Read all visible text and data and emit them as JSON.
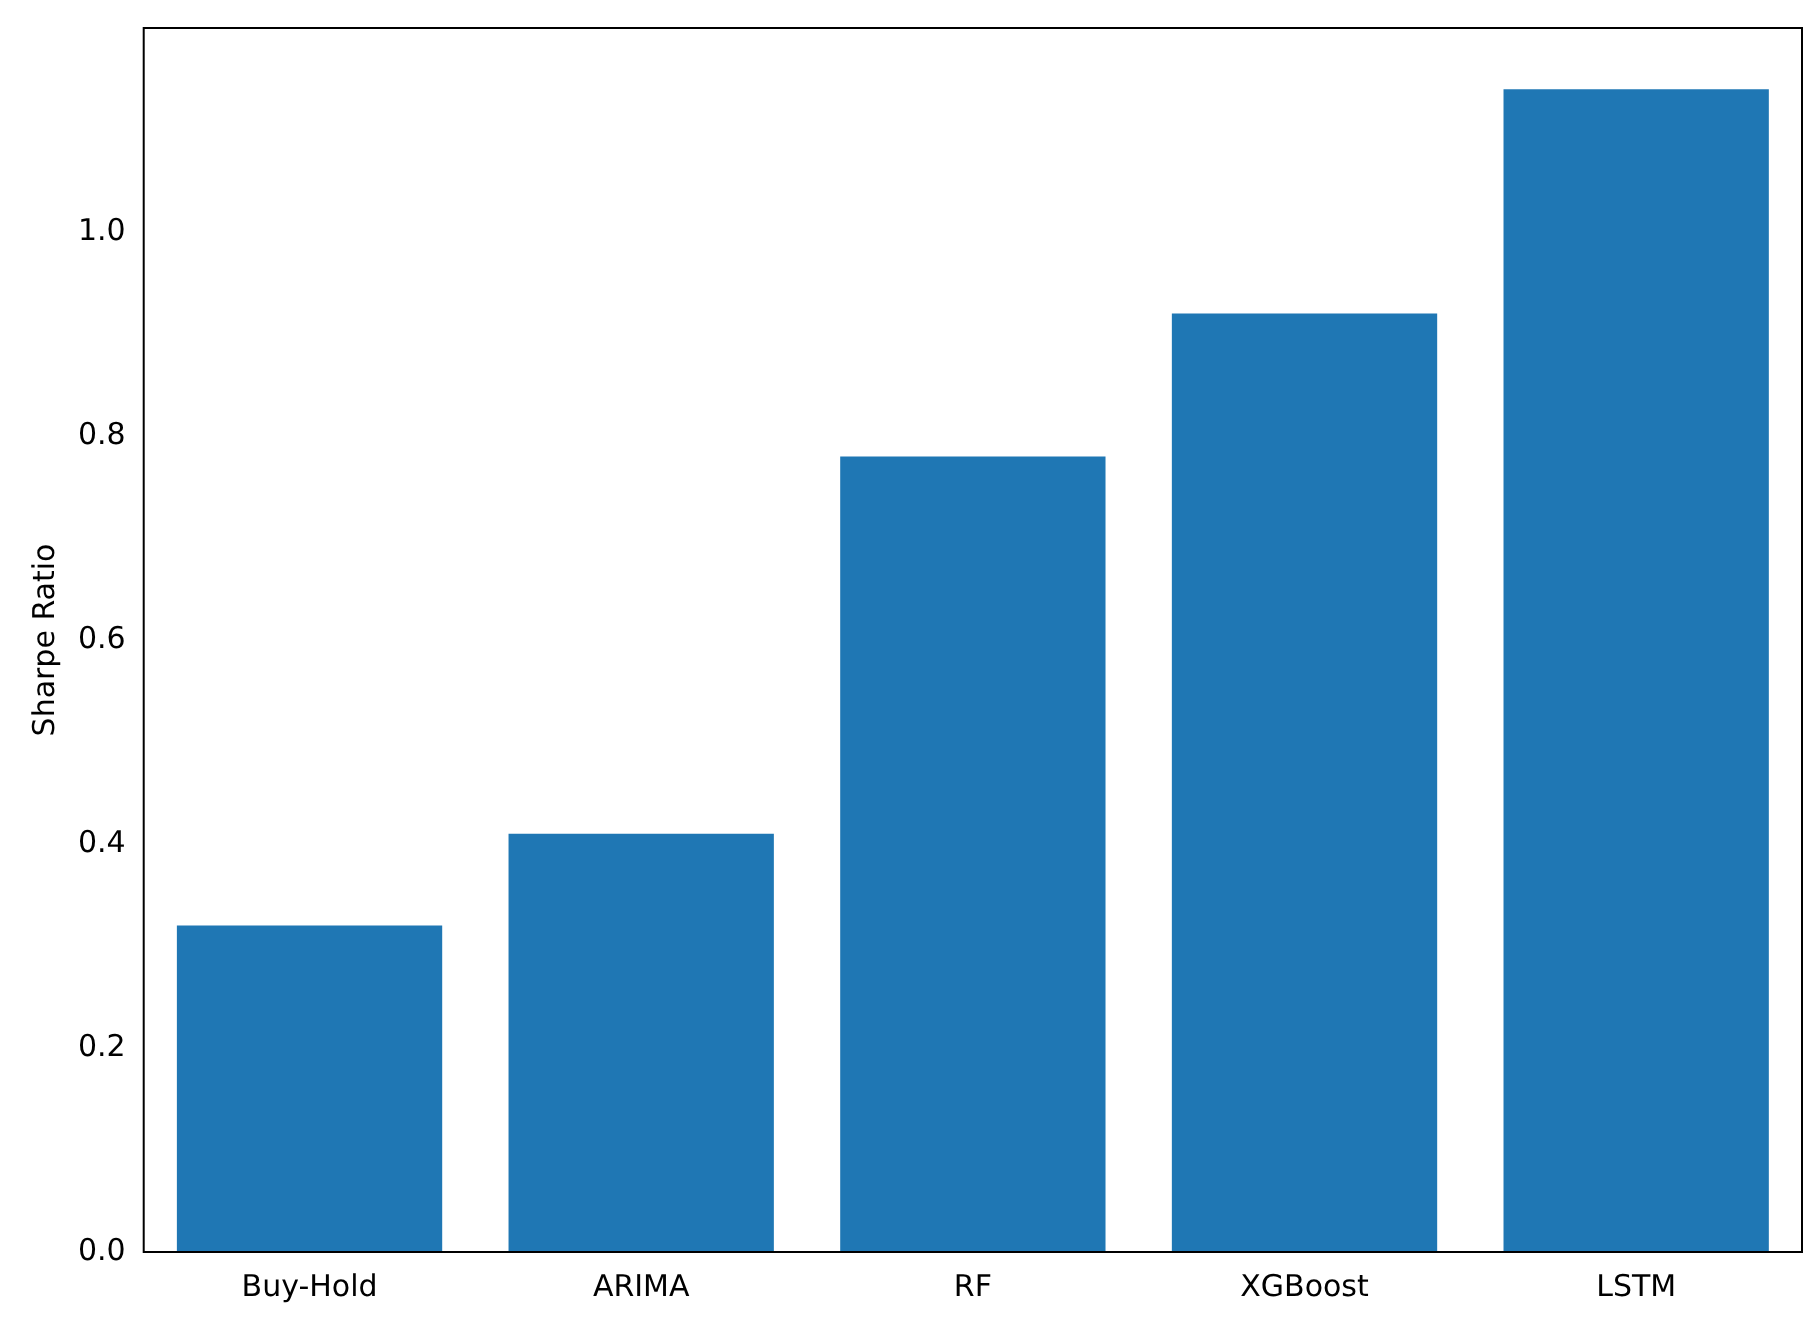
{
  "chart_data": {
    "type": "bar",
    "ylabel": "Sharpe Ratio",
    "categories": [
      "Buy-Hold",
      "ARIMA",
      "RF",
      "XGBoost",
      "LSTM"
    ],
    "values": [
      0.32,
      0.41,
      0.78,
      0.92,
      1.14
    ],
    "color": "#1f77b4",
    "ylim": [
      0,
      1.2
    ],
    "yticks": [
      {
        "value": 0,
        "label": "0.0"
      },
      0.2,
      0.4,
      0.6,
      0.8,
      {
        "value": 1,
        "label": "1.0"
      }
    ],
    "grid": false,
    "legend": false
  }
}
